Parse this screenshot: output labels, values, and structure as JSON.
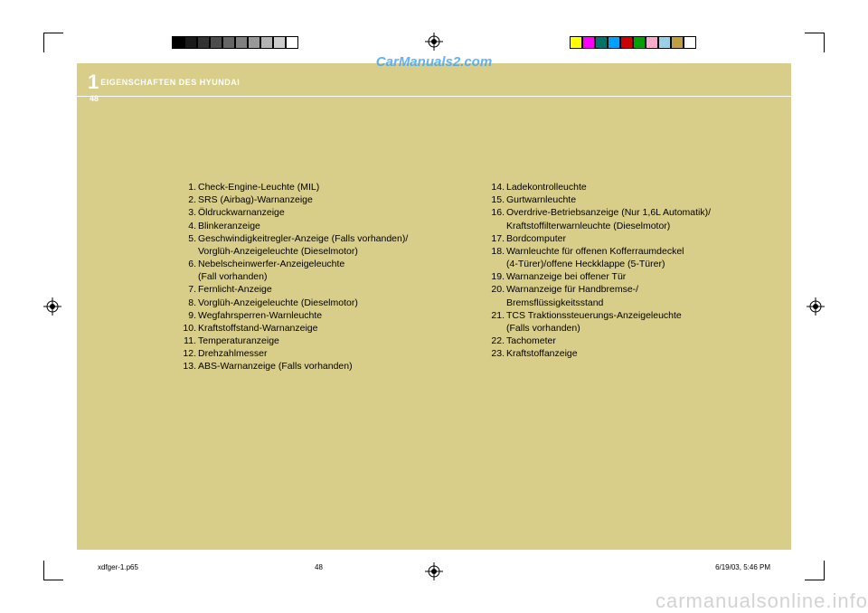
{
  "header": {
    "chapter_number": "1",
    "chapter_title": "EIGENSCHAFTEN DES HYUNDAI",
    "page_number": "48"
  },
  "watermarks": {
    "top": "CarManuals2.com",
    "bottom": "carmanualsonline.info"
  },
  "left_list": [
    {
      "n": "1.",
      "t": "Check-Engine-Leuchte (MIL)"
    },
    {
      "n": "2.",
      "t": "SRS (Airbag)-Warnanzeige"
    },
    {
      "n": "3.",
      "t": "Öldruckwarnanzeige"
    },
    {
      "n": "4.",
      "t": "Blinkeranzeige"
    },
    {
      "n": "5.",
      "t": "Geschwindigkeitregler-Anzeige (Falls vorhanden)/"
    },
    {
      "n": "",
      "t": "Vorglüh-Anzeigeleuchte (Dieselmotor)"
    },
    {
      "n": "6.",
      "t": "Nebelscheinwerfer-Anzeigeleuchte"
    },
    {
      "n": "",
      "t": "(Fall vorhanden)"
    },
    {
      "n": "7.",
      "t": "Fernlicht-Anzeige"
    },
    {
      "n": "8.",
      "t": "Vorglüh-Anzeigeleuchte (Dieselmotor)"
    },
    {
      "n": "9.",
      "t": "Wegfahrsperren-Warnleuchte"
    },
    {
      "n": "10.",
      "t": "Kraftstoffstand-Warnanzeige"
    },
    {
      "n": "11.",
      "t": "Temperaturanzeige"
    },
    {
      "n": "12.",
      "t": "Drehzahlmesser"
    },
    {
      "n": "13.",
      "t": "ABS-Warnanzeige (Falls vorhanden)"
    }
  ],
  "right_list": [
    {
      "n": "14.",
      "t": "Ladekontrolleuchte"
    },
    {
      "n": "15.",
      "t": "Gurtwarnleuchte"
    },
    {
      "n": "16.",
      "t": "Overdrive-Betriebsanzeige (Nur 1,6L Automatik)/"
    },
    {
      "n": "",
      "t": "Kraftstoffilterwarnleuchte (Dieselmotor)"
    },
    {
      "n": "17.",
      "t": "Bordcomputer"
    },
    {
      "n": "18.",
      "t": "Warnleuchte für offenen Kofferraumdeckel"
    },
    {
      "n": "",
      "t": "(4-Türer)/offene Heckklappe (5-Türer)"
    },
    {
      "n": "19.",
      "t": "Warnanzeige bei offener Tür"
    },
    {
      "n": "20.",
      "t": "Warnanzeige für Handbremse-/"
    },
    {
      "n": "",
      "t": "Bremsflüssigkeitsstand"
    },
    {
      "n": "21.",
      "t": "TCS Traktionssteuerungs-Anzeigeleuchte"
    },
    {
      "n": "",
      "t": "(Falls vorhanden)"
    },
    {
      "n": "22.",
      "t": "Tachometer"
    },
    {
      "n": "23.",
      "t": "Kraftstoffanzeige"
    }
  ],
  "footer": {
    "file": "xdfger-1.p65",
    "page": "48",
    "timestamp": "6/19/03, 5:46 PM"
  },
  "swatches_left": [
    "#000000",
    "#1a1a1a",
    "#333333",
    "#4d4d4d",
    "#666666",
    "#808080",
    "#999999",
    "#b3b3b3",
    "#cccccc",
    "#ffffff"
  ],
  "swatches_right": [
    "#ffff00",
    "#ff00ff",
    "#00746b",
    "#00a0ff",
    "#cc0000",
    "#00a000",
    "#f7aac9",
    "#99d0e8",
    "#bfa040",
    "#ffffff"
  ],
  "page_bg": "#d8ce8a"
}
